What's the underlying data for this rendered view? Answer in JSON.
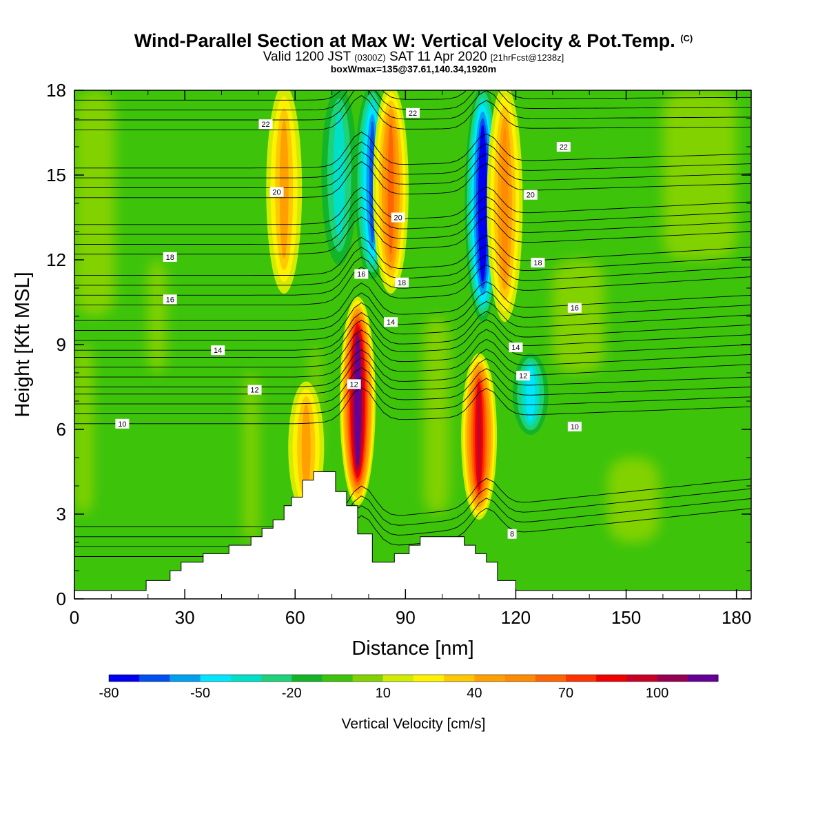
{
  "title": {
    "main": "Wind-Parallel Section at Max W: Vertical Velocity & Pot.Temp.",
    "copyright": "(C)",
    "valid_prefix": "Valid 1200 JST",
    "valid_utc": "(0300Z)",
    "valid_date": "SAT 11 Apr 2020",
    "forecast": "[21hrFcst@1238z]",
    "box": "boxWmax=135@37.61,140.34,1920m"
  },
  "chart_data": {
    "type": "heatmap",
    "xlabel": "Distance [nm]",
    "ylabel": "Height [Kft MSL]",
    "xlim": [
      0,
      184
    ],
    "ylim": [
      0,
      18
    ],
    "x_ticks": [
      0,
      30,
      60,
      90,
      120,
      150,
      180
    ],
    "y_ticks": [
      0,
      3,
      6,
      9,
      12,
      15,
      18
    ],
    "x_ticks_labels": [
      "0",
      "30",
      "60",
      "90",
      "120",
      "150",
      "180"
    ],
    "y_ticks_labels": [
      "0",
      "3",
      "6",
      "9",
      "12",
      "15",
      "18"
    ],
    "colorbar": {
      "label": "Vertical Velocity [cm/s]",
      "min": -80,
      "max": 120,
      "step": 10,
      "tick_values": [
        -80,
        -50,
        -20,
        10,
        40,
        70,
        100
      ],
      "tick_labels": [
        "-80",
        "-50",
        "-20",
        "10",
        "40",
        "70",
        "100"
      ],
      "colors": [
        "#0000ee",
        "#0050f0",
        "#00a0f0",
        "#00e6ff",
        "#00e0c8",
        "#1ed27a",
        "#14b428",
        "#3cc30a",
        "#82d200",
        "#d2ec00",
        "#fff200",
        "#ffc800",
        "#ffa000",
        "#ff8c00",
        "#ff6400",
        "#ff3200",
        "#f00000",
        "#c80028",
        "#960050",
        "#640096"
      ]
    },
    "vertical_velocity_features": [
      {
        "x": 63,
        "z_bottom": 3.2,
        "z_top": 7.5,
        "w": 35
      },
      {
        "x": 77,
        "z_bottom": 3.5,
        "z_top": 10.5,
        "w": 118
      },
      {
        "x": 81,
        "z_bottom": 11.5,
        "z_top": 18,
        "w": -55
      },
      {
        "x": 86,
        "z_bottom": 11,
        "z_top": 18,
        "w": 55
      },
      {
        "x": 110,
        "z_bottom": 3,
        "z_top": 8.5,
        "w": 90
      },
      {
        "x": 111,
        "z_bottom": 10,
        "z_top": 18,
        "w": -75
      },
      {
        "x": 117,
        "z_bottom": 10,
        "z_top": 18,
        "w": 45
      },
      {
        "x": 124,
        "z_bottom": 6,
        "z_top": 8.5,
        "w": -35
      },
      {
        "x": 57,
        "z_bottom": 11,
        "z_top": 18,
        "w": 40
      },
      {
        "x": 72,
        "z_bottom": 12,
        "z_top": 18,
        "w": -30
      }
    ],
    "terrain": [
      [
        0,
        0.3
      ],
      [
        19.5,
        0.3
      ],
      [
        19.5,
        0.65
      ],
      [
        26,
        0.65
      ],
      [
        26,
        1.0
      ],
      [
        29,
        1.0
      ],
      [
        29,
        1.3
      ],
      [
        35,
        1.3
      ],
      [
        35,
        1.6
      ],
      [
        42,
        1.6
      ],
      [
        42,
        1.9
      ],
      [
        48,
        1.9
      ],
      [
        48,
        2.2
      ],
      [
        51,
        2.2
      ],
      [
        51,
        2.5
      ],
      [
        54,
        2.5
      ],
      [
        54,
        2.8
      ],
      [
        57,
        2.8
      ],
      [
        57,
        3.3
      ],
      [
        59,
        3.3
      ],
      [
        59,
        3.6
      ],
      [
        62,
        3.6
      ],
      [
        62,
        4.2
      ],
      [
        65,
        4.2
      ],
      [
        65,
        4.5
      ],
      [
        71,
        4.5
      ],
      [
        71,
        3.8
      ],
      [
        74,
        3.8
      ],
      [
        74,
        3.3
      ],
      [
        77,
        3.3
      ],
      [
        77,
        2.3
      ],
      [
        81,
        2.3
      ],
      [
        81,
        1.3
      ],
      [
        87,
        1.3
      ],
      [
        87,
        1.6
      ],
      [
        91,
        1.6
      ],
      [
        91,
        1.9
      ],
      [
        94,
        1.9
      ],
      [
        94,
        2.2
      ],
      [
        106,
        2.2
      ],
      [
        106,
        1.9
      ],
      [
        109,
        1.9
      ],
      [
        109,
        1.6
      ],
      [
        112,
        1.6
      ],
      [
        112,
        1.3
      ],
      [
        115,
        1.3
      ],
      [
        115,
        0.65
      ],
      [
        120,
        0.65
      ],
      [
        120,
        0.3
      ],
      [
        184,
        0.3
      ]
    ],
    "theta_contours": [
      {
        "label": "8",
        "base": 1.5,
        "far": 3.2
      },
      {
        "label": "10",
        "base": 6.2,
        "far": 6.8
      },
      {
        "label": "12",
        "base": 7.5,
        "far": 8.3
      },
      {
        "label": "14",
        "base": 8.8,
        "far": 9.7
      },
      {
        "label": "16",
        "base": 10.4,
        "far": 11.4
      },
      {
        "label": "18",
        "base": 12.2,
        "far": 13.0
      },
      {
        "label": "20",
        "base": 14.2,
        "far": 14.7
      },
      {
        "label": "22",
        "base": 16.6,
        "far": 16.7
      }
    ],
    "contour_label_spots": [
      {
        "label": "22",
        "x": 52,
        "z": 16.8
      },
      {
        "label": "22",
        "x": 92,
        "z": 17.2
      },
      {
        "label": "22",
        "x": 133,
        "z": 16.0
      },
      {
        "label": "20",
        "x": 55,
        "z": 14.4
      },
      {
        "label": "20",
        "x": 88,
        "z": 13.5
      },
      {
        "label": "20",
        "x": 124,
        "z": 14.3
      },
      {
        "label": "18",
        "x": 26,
        "z": 12.1
      },
      {
        "label": "18",
        "x": 89,
        "z": 11.2
      },
      {
        "label": "18",
        "x": 126,
        "z": 11.9
      },
      {
        "label": "16",
        "x": 26,
        "z": 10.6
      },
      {
        "label": "16",
        "x": 78,
        "z": 11.5
      },
      {
        "label": "16",
        "x": 136,
        "z": 10.3
      },
      {
        "label": "14",
        "x": 39,
        "z": 8.8
      },
      {
        "label": "14",
        "x": 86,
        "z": 9.8
      },
      {
        "label": "14",
        "x": 120,
        "z": 8.9
      },
      {
        "label": "12",
        "x": 49,
        "z": 7.4
      },
      {
        "label": "12",
        "x": 76,
        "z": 7.6
      },
      {
        "label": "12",
        "x": 122,
        "z": 7.9
      },
      {
        "label": "10",
        "x": 13,
        "z": 6.2
      },
      {
        "label": "10",
        "x": 136,
        "z": 6.1
      },
      {
        "label": "8",
        "x": 119,
        "z": 2.3
      }
    ]
  }
}
